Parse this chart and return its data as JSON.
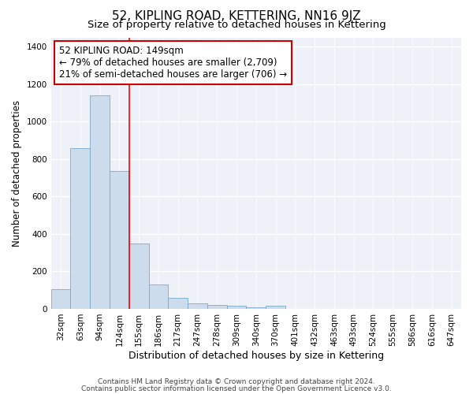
{
  "title": "52, KIPLING ROAD, KETTERING, NN16 9JZ",
  "subtitle": "Size of property relative to detached houses in Kettering",
  "xlabel": "Distribution of detached houses by size in Kettering",
  "ylabel": "Number of detached properties",
  "bin_labels": [
    "32sqm",
    "63sqm",
    "94sqm",
    "124sqm",
    "155sqm",
    "186sqm",
    "217sqm",
    "247sqm",
    "278sqm",
    "309sqm",
    "340sqm",
    "370sqm",
    "401sqm",
    "432sqm",
    "463sqm",
    "493sqm",
    "524sqm",
    "555sqm",
    "586sqm",
    "616sqm",
    "647sqm"
  ],
  "bar_heights": [
    105,
    860,
    1140,
    735,
    350,
    130,
    60,
    30,
    20,
    15,
    10,
    15,
    0,
    0,
    0,
    0,
    0,
    0,
    0,
    0,
    0
  ],
  "bar_color": "#ccdcec",
  "bar_edgecolor": "#7aaac8",
  "red_line_bin": 4,
  "annotation_text_line1": "52 KIPLING ROAD: 149sqm",
  "annotation_text_line2": "← 79% of detached houses are smaller (2,709)",
  "annotation_text_line3": "21% of semi-detached houses are larger (706) →",
  "annotation_box_color": "#ffffff",
  "annotation_box_edgecolor": "#cc0000",
  "ylim": [
    0,
    1450
  ],
  "yticks": [
    0,
    200,
    400,
    600,
    800,
    1000,
    1200,
    1400
  ],
  "footer1": "Contains HM Land Registry data © Crown copyright and database right 2024.",
  "footer2": "Contains public sector information licensed under the Open Government Licence v3.0.",
  "bg_color": "#ffffff",
  "plot_bg_color": "#eef2f8",
  "grid_color": "#ffffff",
  "title_fontsize": 11,
  "subtitle_fontsize": 9.5,
  "xlabel_fontsize": 9,
  "ylabel_fontsize": 8.5,
  "tick_fontsize": 7.5,
  "annotation_fontsize": 8.5,
  "footer_fontsize": 6.5
}
